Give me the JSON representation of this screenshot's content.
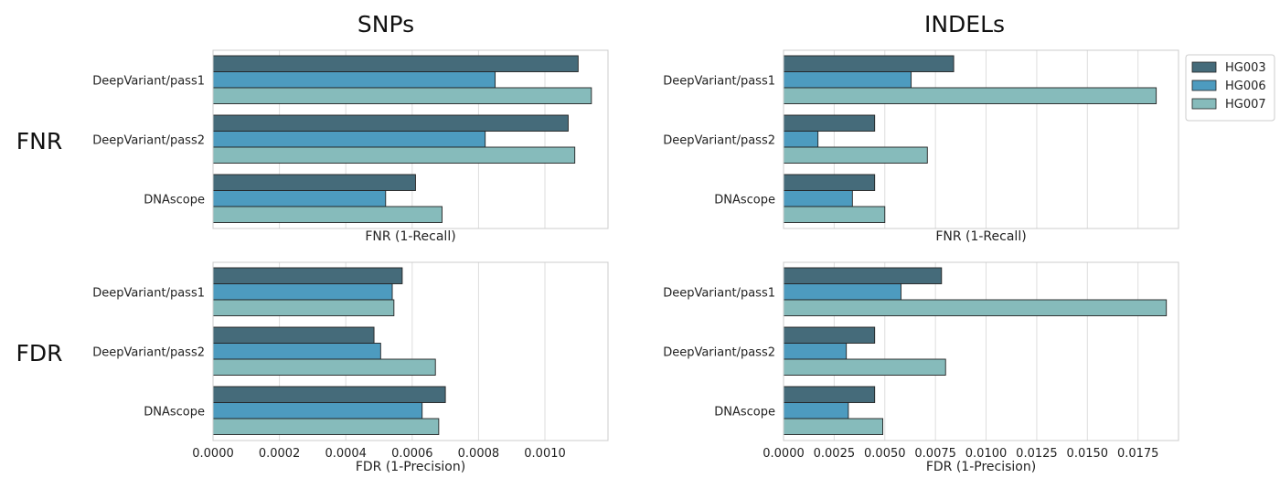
{
  "columns": [
    "SNPs",
    "INDELs"
  ],
  "rows": [
    "FNR",
    "FDR"
  ],
  "legend": {
    "placement": "right",
    "entries": [
      {
        "name": "HG003",
        "color": "#456b7a"
      },
      {
        "name": "HG006",
        "color": "#4d9bbf"
      },
      {
        "name": "HG007",
        "color": "#86bbbb"
      }
    ]
  },
  "chart_data": [
    {
      "type": "bar",
      "orientation": "horizontal",
      "row": "FNR",
      "column": "SNPs",
      "categories": [
        "DeepVariant/pass1",
        "DeepVariant/pass2",
        "DNAscope"
      ],
      "series": [
        {
          "name": "HG003",
          "values": [
            0.0011,
            0.00107,
            0.00061
          ]
        },
        {
          "name": "HG006",
          "values": [
            0.00085,
            0.00082,
            0.00052
          ]
        },
        {
          "name": "HG007",
          "values": [
            0.00114,
            0.00109,
            0.00069
          ]
        }
      ],
      "xlabel": "FNR (1-Recall)",
      "xlim": [
        0,
        0.00119
      ],
      "gridlines": [
        0.0002,
        0.0004,
        0.0006,
        0.0008,
        0.001
      ],
      "xticks": [],
      "grid": true
    },
    {
      "type": "bar",
      "orientation": "horizontal",
      "row": "FNR",
      "column": "INDELs",
      "categories": [
        "DeepVariant/pass1",
        "DeepVariant/pass2",
        "DNAscope"
      ],
      "series": [
        {
          "name": "HG003",
          "values": [
            0.0084,
            0.0045,
            0.0045
          ]
        },
        {
          "name": "HG006",
          "values": [
            0.0063,
            0.0017,
            0.0034
          ]
        },
        {
          "name": "HG007",
          "values": [
            0.0184,
            0.0071,
            0.005
          ]
        }
      ],
      "xlabel": "FNR (1-Recall)",
      "xlim": [
        0,
        0.0195
      ],
      "gridlines": [
        0.0025,
        0.005,
        0.0075,
        0.01,
        0.0125,
        0.015,
        0.0175
      ],
      "xticks": [],
      "grid": true
    },
    {
      "type": "bar",
      "orientation": "horizontal",
      "row": "FDR",
      "column": "SNPs",
      "categories": [
        "DeepVariant/pass1",
        "DeepVariant/pass2",
        "DNAscope"
      ],
      "series": [
        {
          "name": "HG003",
          "values": [
            0.00057,
            0.000485,
            0.0007
          ]
        },
        {
          "name": "HG006",
          "values": [
            0.00054,
            0.000505,
            0.00063
          ]
        },
        {
          "name": "HG007",
          "values": [
            0.000545,
            0.00067,
            0.00068
          ]
        }
      ],
      "xlabel": "FDR (1-Precision)",
      "xlim": [
        0,
        0.00119
      ],
      "gridlines": [
        0.0002,
        0.0004,
        0.0006,
        0.0008,
        0.001
      ],
      "xticks": [
        "0.0000",
        "0.0002",
        "0.0004",
        "0.0006",
        "0.0008",
        "0.0010"
      ],
      "grid": true
    },
    {
      "type": "bar",
      "orientation": "horizontal",
      "row": "FDR",
      "column": "INDELs",
      "categories": [
        "DeepVariant/pass1",
        "DeepVariant/pass2",
        "DNAscope"
      ],
      "series": [
        {
          "name": "HG003",
          "values": [
            0.0078,
            0.0045,
            0.0045
          ]
        },
        {
          "name": "HG006",
          "values": [
            0.0058,
            0.0031,
            0.0032
          ]
        },
        {
          "name": "HG007",
          "values": [
            0.0189,
            0.008,
            0.0049
          ]
        }
      ],
      "xlabel": "FDR (1-Precision)",
      "xlim": [
        0,
        0.0195
      ],
      "gridlines": [
        0.0025,
        0.005,
        0.0075,
        0.01,
        0.0125,
        0.015,
        0.0175
      ],
      "xticks": [
        "0.0000",
        "0.0025",
        "0.0050",
        "0.0075",
        "0.0100",
        "0.0125",
        "0.0150",
        "0.0175"
      ],
      "grid": true
    }
  ]
}
